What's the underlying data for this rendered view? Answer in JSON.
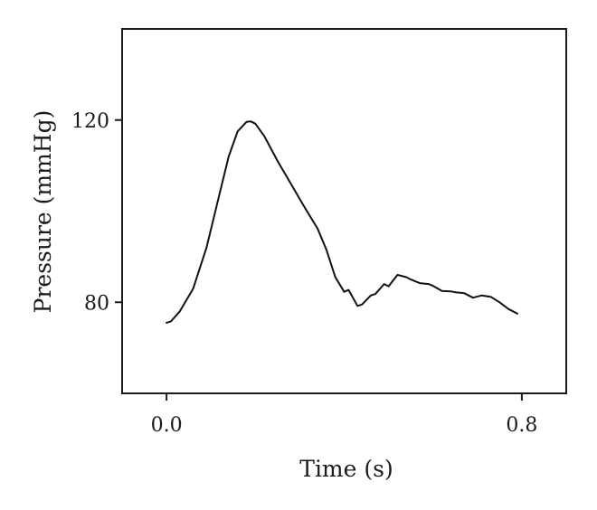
{
  "chart_data": {
    "type": "line",
    "title": "",
    "xlabel": "Time (s)",
    "ylabel": "Pressure (mmHg)",
    "xlim": [
      -0.1,
      0.9
    ],
    "ylim": [
      60,
      140
    ],
    "x_ticks": [
      0.0,
      0.8
    ],
    "x_tick_labels": [
      "0.0",
      "0.8"
    ],
    "y_ticks": [
      80,
      120
    ],
    "y_tick_labels": [
      "80",
      "120"
    ],
    "grid": false,
    "legend": "none",
    "series": [
      {
        "color": "#111111",
        "x": [
          0.0,
          0.01,
          0.03,
          0.06,
          0.09,
          0.12,
          0.14,
          0.16,
          0.18,
          0.19,
          0.2,
          0.22,
          0.25,
          0.28,
          0.31,
          0.34,
          0.36,
          0.38,
          0.4,
          0.41,
          0.43,
          0.44,
          0.46,
          0.47,
          0.49,
          0.5,
          0.52,
          0.54,
          0.55,
          0.57,
          0.59,
          0.6,
          0.62,
          0.64,
          0.65,
          0.67,
          0.69,
          0.71,
          0.73,
          0.75,
          0.77,
          0.79
        ],
        "y": [
          75.5,
          75.8,
          78.0,
          83.0,
          92.0,
          104.0,
          112.0,
          117.5,
          119.6,
          119.7,
          119.2,
          116.5,
          111.0,
          106.0,
          101.0,
          96.2,
          91.5,
          85.5,
          82.3,
          82.7,
          79.2,
          79.5,
          81.5,
          81.8,
          84.0,
          83.5,
          86.0,
          85.5,
          85.0,
          84.2,
          84.0,
          83.6,
          82.5,
          82.4,
          82.2,
          82.0,
          81.0,
          81.5,
          81.2,
          80.0,
          78.5,
          77.5
        ]
      }
    ]
  }
}
